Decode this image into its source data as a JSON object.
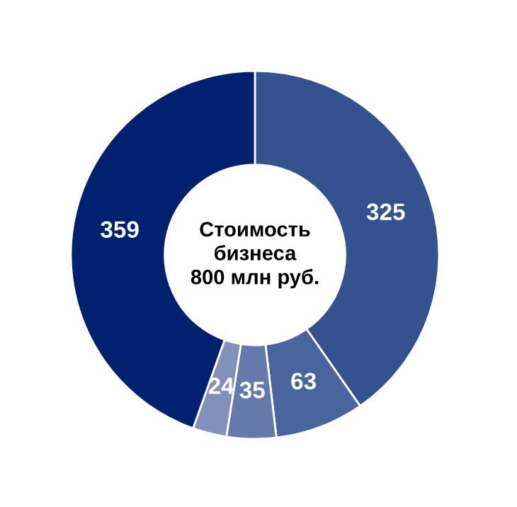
{
  "chart_data": {
    "type": "donut",
    "title": "Стоимость\nбизнеса\n800 млн руб.",
    "categories": [
      null,
      null,
      null,
      null,
      null
    ],
    "values": [
      325,
      63,
      35,
      24,
      359
    ],
    "colors": [
      "#34528f",
      "#4a659e",
      "#6579ad",
      "#8291bb",
      "#00216f"
    ],
    "data_labels": true
  }
}
